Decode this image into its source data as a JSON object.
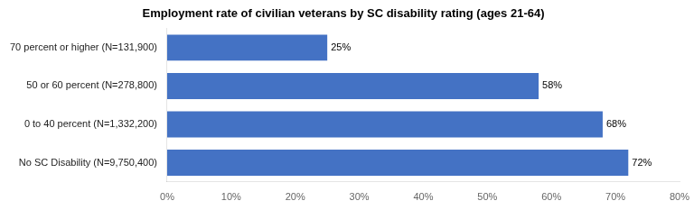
{
  "chart_data": {
    "type": "bar",
    "orientation": "horizontal",
    "title": "Employment rate of civilian veterans by SC disability rating (ages 21-64)",
    "categories": [
      "70 percent or higher (N=131,900)",
      "50 or 60 percent (N=278,800)",
      "0 to 40 percent (N=1,332,200)",
      "No SC Disability (N=9,750,400)"
    ],
    "values": [
      0.25,
      0.58,
      0.68,
      0.72
    ],
    "value_labels": [
      "25%",
      "58%",
      "68%",
      "72%"
    ],
    "data_labels": true,
    "color": "#4472C4",
    "xlim": [
      0,
      0.8
    ],
    "xticks": [
      {
        "value": 0.0,
        "label": "0%"
      },
      {
        "value": 0.1,
        "label": "10%"
      },
      {
        "value": 0.2,
        "label": "20%"
      },
      {
        "value": 0.3,
        "label": "30%"
      },
      {
        "value": 0.4,
        "label": "40%"
      },
      {
        "value": 0.5,
        "label": "50%"
      },
      {
        "value": 0.6,
        "label": "60%"
      },
      {
        "value": 0.7,
        "label": "70%"
      },
      {
        "value": 0.8,
        "label": "80%"
      }
    ],
    "grid": false
  }
}
